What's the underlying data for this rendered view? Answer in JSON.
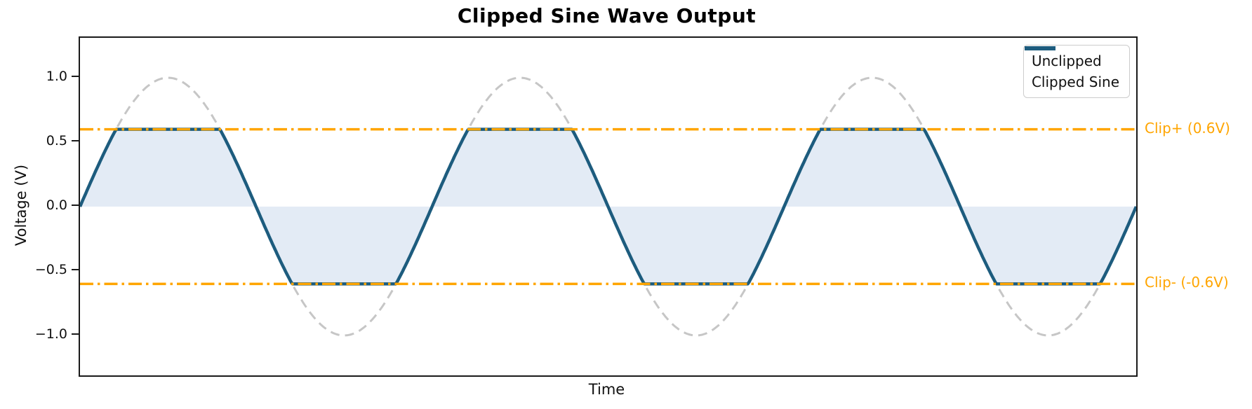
{
  "chart_data": {
    "type": "line",
    "title": "Clipped Sine Wave Output",
    "xlabel": "Time",
    "ylabel": "Voltage (V)",
    "x_range": [
      0,
      3
    ],
    "ylim": [
      -1.31,
      1.31
    ],
    "yticks": [
      "1.0",
      "0.5",
      "0.0",
      "−0.5",
      "−1.0"
    ],
    "ytick_values": [
      1.0,
      0.5,
      0.0,
      -0.5,
      -1.0
    ],
    "xticks": [],
    "grid": false,
    "legend_position": "upper right",
    "series": [
      {
        "name": "Unclipped",
        "fn": "sine",
        "amplitude": 1.0,
        "cycles": 3,
        "style": "dashed"
      },
      {
        "name": "Clipped Sine",
        "fn": "clipped-sine",
        "amplitude": 1.0,
        "clip_level": 0.6,
        "cycles": 3,
        "style": "solid"
      }
    ],
    "amplitude": 1.0,
    "clip_level": 0.6,
    "cycles": 3,
    "fill_between": "clipped curve and 0 V baseline",
    "clip_pos_label": "Clip+ (0.6V)",
    "clip_neg_label": "Clip- (-0.6V)",
    "legend": [
      {
        "label": "Unclipped"
      },
      {
        "label": "Clipped Sine"
      }
    ],
    "colors": {
      "unclipped": "#c6c6c6",
      "clipped": "#1d5c7e",
      "clip_line": "#ffa500",
      "fill": "#e3ebf5",
      "spine": "#1a1a1a"
    }
  }
}
